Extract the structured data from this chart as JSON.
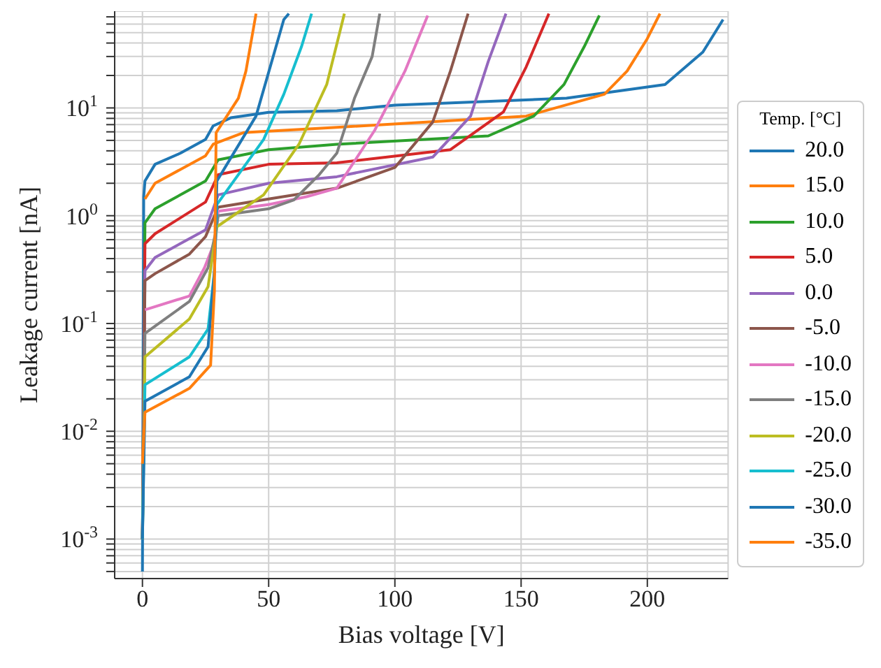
{
  "chart_data": {
    "type": "line",
    "xlabel": "Bias voltage [V]",
    "ylabel": "Leakage current [nA]",
    "legend_title": "Temp. [°C]",
    "log": "y",
    "grid": true,
    "legend": "right",
    "marker": "none",
    "line_style": "solid",
    "xlim": [
      -11,
      232
    ],
    "xticks": [
      0,
      50,
      100,
      150,
      200
    ],
    "ylim": [
      0.00043,
      79
    ],
    "yticks": [
      {
        "value": 0.0005,
        "label": null
      },
      {
        "value": 0.0006,
        "label": null
      },
      {
        "value": 0.0007,
        "label": null
      },
      {
        "value": 0.0008,
        "label": null
      },
      {
        "value": 0.0009,
        "label": null
      },
      {
        "value": 0.001,
        "label": "10$^{-3}$"
      },
      {
        "value": 0.002,
        "label": null
      },
      {
        "value": 0.003,
        "label": null
      },
      {
        "value": 0.004,
        "label": null
      },
      {
        "value": 0.005,
        "label": null
      },
      {
        "value": 0.006,
        "label": null
      },
      {
        "value": 0.007,
        "label": null
      },
      {
        "value": 0.008,
        "label": null
      },
      {
        "value": 0.009,
        "label": null
      },
      {
        "value": 0.01,
        "label": "10$^{-2}$"
      },
      {
        "value": 0.02,
        "label": null
      },
      {
        "value": 0.03,
        "label": null
      },
      {
        "value": 0.04,
        "label": null
      },
      {
        "value": 0.05,
        "label": null
      },
      {
        "value": 0.06,
        "label": null
      },
      {
        "value": 0.07,
        "label": null
      },
      {
        "value": 0.08,
        "label": null
      },
      {
        "value": 0.09,
        "label": null
      },
      {
        "value": 0.1,
        "label": "10$^{-1}$"
      },
      {
        "value": 0.2,
        "label": null
      },
      {
        "value": 0.3,
        "label": null
      },
      {
        "value": 0.4,
        "label": null
      },
      {
        "value": 0.5,
        "label": null
      },
      {
        "value": 0.6,
        "label": null
      },
      {
        "value": 0.7,
        "label": null
      },
      {
        "value": 0.8,
        "label": null
      },
      {
        "value": 0.9,
        "label": null
      },
      {
        "value": 1,
        "label": "10$^{0}$"
      },
      {
        "value": 2,
        "label": null
      },
      {
        "value": 3,
        "label": null
      },
      {
        "value": 4,
        "label": null
      },
      {
        "value": 5,
        "label": null
      },
      {
        "value": 6,
        "label": null
      },
      {
        "value": 7,
        "label": null
      },
      {
        "value": 8,
        "label": null
      },
      {
        "value": 9,
        "label": null
      },
      {
        "value": 10,
        "label": "10$^{1}$"
      },
      {
        "value": 20,
        "label": null
      },
      {
        "value": 30,
        "label": null
      },
      {
        "value": 40,
        "label": null
      },
      {
        "value": 50,
        "label": null
      },
      {
        "value": 60,
        "label": null
      },
      {
        "value": 70,
        "label": null
      }
    ],
    "series": [
      {
        "name": "20.0",
        "color": "#1f77b4",
        "x": [
          0,
          0.5,
          1,
          5,
          15,
          25,
          28,
          35,
          50,
          77,
          100,
          168,
          207,
          222,
          230
        ],
        "values": [
          0.0005,
          1.5,
          2.1,
          3.0,
          3.8,
          5.1,
          6.8,
          8.1,
          9.1,
          9.4,
          10.6,
          12.3,
          16.5,
          33,
          66
        ]
      },
      {
        "name": "15.0",
        "color": "#ff7f0e",
        "x": [
          1,
          5,
          25,
          28,
          40,
          77,
          152,
          183,
          192,
          200,
          205
        ],
        "values": [
          1.43,
          2.0,
          3.6,
          4.6,
          5.9,
          6.6,
          8.4,
          13.4,
          22,
          44,
          75
        ]
      },
      {
        "name": "10.0",
        "color": "#2ca02c",
        "x": [
          0,
          1,
          5,
          25,
          30,
          50,
          77,
          137,
          155,
          167,
          175,
          181
        ],
        "values": [
          0.001,
          0.86,
          1.16,
          2.1,
          3.3,
          4.1,
          4.6,
          5.5,
          8.4,
          16.5,
          37,
          72
        ]
      },
      {
        "name": "5.0",
        "color": "#d62728",
        "x": [
          0,
          1,
          5,
          25,
          30,
          50,
          77,
          122,
          143,
          152,
          161
        ],
        "values": [
          0.001,
          0.55,
          0.68,
          1.34,
          2.4,
          3.0,
          3.1,
          4.1,
          9.2,
          24,
          75
        ]
      },
      {
        "name": "0.0",
        "color": "#9467bd",
        "x": [
          0,
          1,
          5,
          25,
          30,
          50,
          77,
          115,
          130,
          137,
          144
        ],
        "values": [
          0.001,
          0.31,
          0.41,
          0.74,
          1.56,
          2.0,
          2.3,
          3.5,
          8.4,
          27,
          75
        ]
      },
      {
        "name": "-5.0",
        "color": "#8c564b",
        "x": [
          0,
          1,
          5,
          18.6,
          25,
          30,
          50,
          77,
          100,
          115,
          122,
          129
        ],
        "values": [
          0.001,
          0.25,
          0.29,
          0.44,
          0.64,
          1.2,
          1.43,
          1.8,
          2.8,
          7.4,
          22,
          75
        ]
      },
      {
        "name": "-10.0",
        "color": "#e377c2",
        "x": [
          1,
          18.6,
          24.6,
          29,
          30,
          50,
          65,
          77,
          92,
          104,
          113
        ],
        "values": [
          0.134,
          0.18,
          0.33,
          0.6,
          1.1,
          1.27,
          1.5,
          1.8,
          6.2,
          22,
          72
        ]
      },
      {
        "name": "-15.0",
        "color": "#7f7f7f",
        "x": [
          0,
          1,
          18.6,
          26,
          29,
          30,
          50,
          60,
          70,
          77,
          84,
          91,
          94
        ],
        "values": [
          0.001,
          0.081,
          0.16,
          0.33,
          0.7,
          1.0,
          1.16,
          1.4,
          2.4,
          3.8,
          12.3,
          30,
          75
        ]
      },
      {
        "name": "-20.0",
        "color": "#bcbd22",
        "x": [
          0,
          1,
          18.6,
          26,
          29.5,
          48,
          62,
          73,
          80
        ],
        "values": [
          0.001,
          0.049,
          0.11,
          0.22,
          0.79,
          1.56,
          4.6,
          16.5,
          75
        ]
      },
      {
        "name": "-25.0",
        "color": "#17becf",
        "x": [
          0,
          1,
          18.6,
          26,
          28.5,
          29.5,
          48,
          56,
          63,
          67
        ],
        "values": [
          0.001,
          0.027,
          0.049,
          0.089,
          0.3,
          1.27,
          5.1,
          13.4,
          37,
          75
        ]
      },
      {
        "name": "-30.0",
        "color": "#1f77b4",
        "x": [
          0,
          1,
          18.6,
          26,
          28.5,
          29.5,
          45,
          56,
          58
        ],
        "values": [
          0.001,
          0.019,
          0.032,
          0.061,
          0.3,
          2.1,
          8.4,
          66,
          75
        ]
      },
      {
        "name": "-35.0",
        "color": "#ff7f0e",
        "x": [
          0,
          1,
          18.6,
          27,
          28.5,
          29.2,
          38,
          41,
          45
        ],
        "values": [
          0.005,
          0.015,
          0.025,
          0.041,
          0.2,
          5.9,
          12.3,
          22,
          75
        ]
      }
    ]
  }
}
